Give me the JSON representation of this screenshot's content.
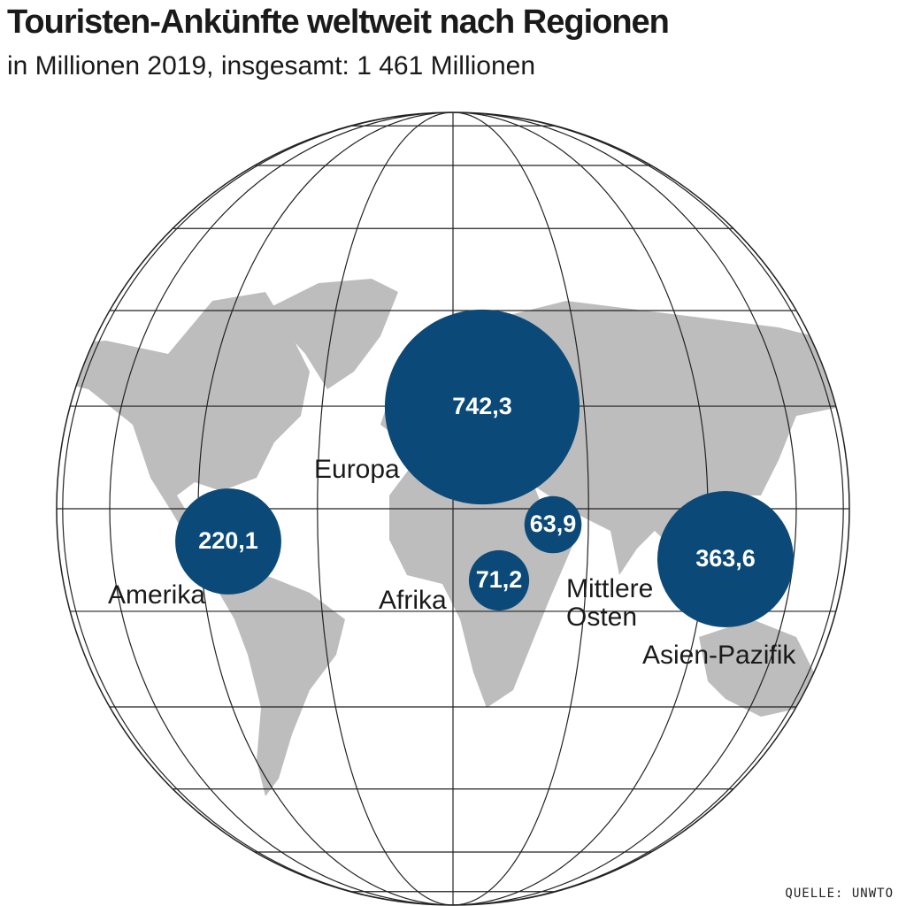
{
  "chart_data": {
    "type": "bubble",
    "title": "Touristen-Ankünfte weltweit nach Regionen",
    "subtitle": "in Millionen 2019, insgesamt: 1 461 Millionen",
    "source": "QUELLE: UNWTO",
    "categories": [
      "Europa",
      "Amerika",
      "Afrika",
      "Mittlere Osten",
      "Asien-Pazifik"
    ],
    "values": [
      742.3,
      220.1,
      71.2,
      63.9,
      363.6
    ],
    "value_labels": [
      "742,3",
      "220,1",
      "71,2",
      "63,9",
      "363,6"
    ],
    "color": "#0b4a78"
  }
}
